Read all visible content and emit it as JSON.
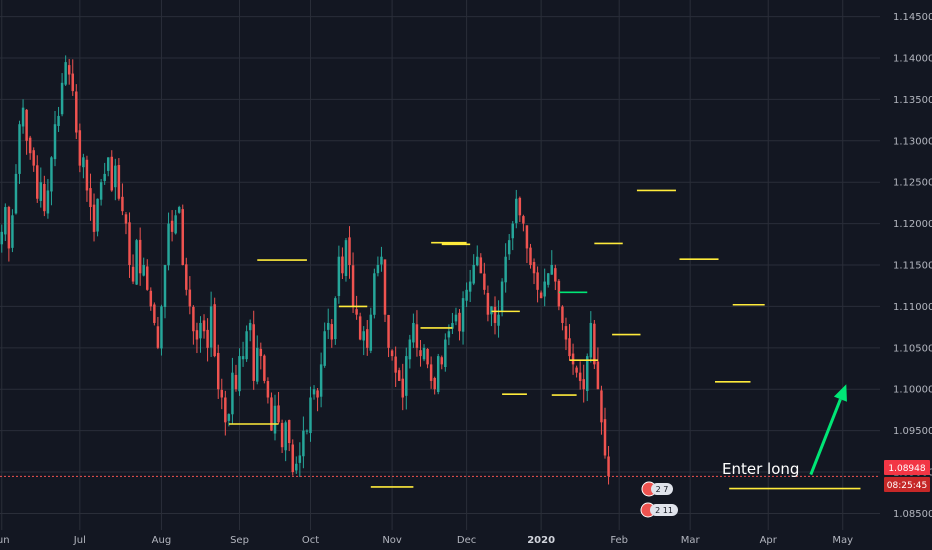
{
  "chart_data": {
    "type": "candlestick",
    "instrument_note": "",
    "y_axis": {
      "position": "right",
      "range": [
        1.083,
        1.147
      ],
      "ticks": [
        "1.14500",
        "1.14000",
        "1.13500",
        "1.13000",
        "1.12500",
        "1.12000",
        "1.11500",
        "1.11000",
        "1.10500",
        "1.10000",
        "1.09500",
        "1.09000",
        "1.08500"
      ]
    },
    "x_axis": {
      "ticks": [
        {
          "label": "Jun",
          "index": 0
        },
        {
          "label": "Jul",
          "index": 22
        },
        {
          "label": "Aug",
          "index": 45
        },
        {
          "label": "Sep",
          "index": 67
        },
        {
          "label": "Oct",
          "index": 87
        },
        {
          "label": "Nov",
          "index": 110
        },
        {
          "label": "Dec",
          "index": 131
        },
        {
          "label": "2020",
          "index": 152,
          "bold": true
        },
        {
          "label": "Feb",
          "index": 174
        },
        {
          "label": "Mar",
          "index": 194
        },
        {
          "label": "Apr",
          "index": 216
        },
        {
          "label": "May",
          "index": 237
        }
      ],
      "total_slots": 248
    },
    "current_price": {
      "value": "1.08948",
      "countdown": "08:25:45",
      "level": 1.08948
    },
    "closes": [
      1.119,
      1.122,
      1.117,
      1.121,
      1.126,
      1.132,
      1.134,
      1.13,
      1.1285,
      1.127,
      1.123,
      1.125,
      1.1215,
      1.124,
      1.128,
      1.132,
      1.133,
      1.137,
      1.1395,
      1.138,
      1.136,
      1.131,
      1.127,
      1.128,
      1.124,
      1.122,
      1.119,
      1.123,
      1.125,
      1.126,
      1.128,
      1.124,
      1.127,
      1.123,
      1.1215,
      1.12,
      1.115,
      1.113,
      1.118,
      1.114,
      1.115,
      1.112,
      1.11,
      1.108,
      1.105,
      1.11,
      1.115,
      1.12,
      1.119,
      1.121,
      1.122,
      1.115,
      1.112,
      1.11,
      1.107,
      1.106,
      1.108,
      1.107,
      1.105,
      1.11,
      1.104,
      1.1,
      1.099,
      1.096,
      1.097,
      1.102,
      1.1,
      1.104,
      1.104,
      1.107,
      1.108,
      1.101,
      1.105,
      1.104,
      1.101,
      1.099,
      1.095,
      1.098,
      1.096,
      1.093,
      1.096,
      1.0935,
      1.09,
      1.091,
      1.092,
      1.095,
      1.095,
      1.099,
      1.1,
      1.099,
      1.103,
      1.107,
      1.108,
      1.106,
      1.111,
      1.116,
      1.114,
      1.118,
      1.115,
      1.11,
      1.109,
      1.106,
      1.107,
      1.105,
      1.109,
      1.114,
      1.115,
      1.116,
      1.109,
      1.105,
      1.104,
      1.102,
      1.101,
      1.099,
      1.104,
      1.106,
      1.108,
      1.105,
      1.104,
      1.105,
      1.103,
      1.101,
      1.1,
      1.104,
      1.103,
      1.106,
      1.107,
      1.108,
      1.109,
      1.107,
      1.111,
      1.112,
      1.113,
      1.115,
      1.116,
      1.114,
      1.112,
      1.109,
      1.11,
      1.108,
      1.109,
      1.113,
      1.116,
      1.118,
      1.12,
      1.123,
      1.121,
      1.12,
      1.117,
      1.115,
      1.114,
      1.112,
      1.111,
      1.113,
      1.114,
      1.115,
      1.113,
      1.11,
      1.108,
      1.106,
      1.104,
      1.103,
      1.102,
      1.101,
      1.1,
      1.104,
      1.108,
      1.103,
      1.1,
      1.096,
      1.092,
      1.0895
    ],
    "horizontal_levels": [
      {
        "from": 72,
        "to": 86,
        "value": 1.1156,
        "color": "#ffeb3b"
      },
      {
        "from": 95,
        "to": 103,
        "value": 1.11,
        "color": "#ffeb3b"
      },
      {
        "from": 64,
        "to": 78,
        "value": 1.0958,
        "color": "#ffeb3b"
      },
      {
        "from": 104,
        "to": 116,
        "value": 1.0882,
        "color": "#ffeb3b"
      },
      {
        "from": 121,
        "to": 131,
        "value": 1.1177,
        "color": "#ffeb3b"
      },
      {
        "from": 124,
        "to": 132,
        "value": 1.1175,
        "color": "#ffeb3b"
      },
      {
        "from": 118,
        "to": 127,
        "value": 1.1074,
        "color": "#ffeb3b"
      },
      {
        "from": 138,
        "to": 146,
        "value": 1.1094,
        "color": "#ffeb3b"
      },
      {
        "from": 141,
        "to": 148,
        "value": 1.0994,
        "color": "#ffeb3b"
      },
      {
        "from": 155,
        "to": 162,
        "value": 1.0993,
        "color": "#ffeb3b"
      },
      {
        "from": 157,
        "to": 165,
        "value": 1.1117,
        "color": "#00e676"
      },
      {
        "from": 160,
        "to": 168,
        "value": 1.1035,
        "color": "#ffeb3b"
      },
      {
        "from": 167,
        "to": 175,
        "value": 1.1176,
        "color": "#ffeb3b"
      },
      {
        "from": 172,
        "to": 180,
        "value": 1.1066,
        "color": "#ffeb3b"
      },
      {
        "from": 179,
        "to": 190,
        "value": 1.124,
        "color": "#ffeb3b"
      },
      {
        "from": 191,
        "to": 202,
        "value": 1.1157,
        "color": "#ffeb3b"
      },
      {
        "from": 201,
        "to": 211,
        "value": 1.1009,
        "color": "#ffeb3b"
      },
      {
        "from": 206,
        "to": 215,
        "value": 1.1102,
        "color": "#ffeb3b"
      },
      {
        "from": 205,
        "to": 242,
        "value": 1.088,
        "color": "#ffeb3b"
      }
    ],
    "annotations": [
      {
        "text": "Enter long",
        "color": "#ffffff"
      }
    ],
    "arrow": {
      "from": {
        "index": 228,
        "value": 1.0897
      },
      "to": {
        "index": 238,
        "value": 1.1006
      },
      "color": "#00e676"
    },
    "event_badges": [
      {
        "text": "2 7"
      },
      {
        "text": "2 11"
      }
    ],
    "colors": {
      "background": "#131722",
      "grid": "#2a2e39",
      "up": "#26a69a",
      "down": "#ef5350",
      "price_label": "#f23645",
      "countdown_label": "#c62828"
    }
  }
}
